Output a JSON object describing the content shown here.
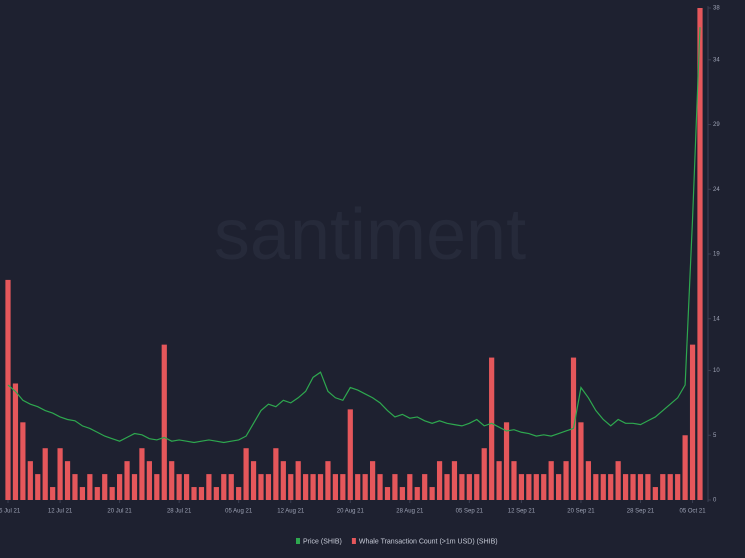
{
  "chart_data": {
    "type": "bar-line",
    "watermark": "santiment",
    "x": [
      "2021-07-05",
      "2021-07-06",
      "2021-07-07",
      "2021-07-08",
      "2021-07-09",
      "2021-07-10",
      "2021-07-11",
      "2021-07-12",
      "2021-07-13",
      "2021-07-14",
      "2021-07-15",
      "2021-07-16",
      "2021-07-17",
      "2021-07-18",
      "2021-07-19",
      "2021-07-20",
      "2021-07-21",
      "2021-07-22",
      "2021-07-23",
      "2021-07-24",
      "2021-07-25",
      "2021-07-26",
      "2021-07-27",
      "2021-07-28",
      "2021-07-29",
      "2021-07-30",
      "2021-07-31",
      "2021-08-01",
      "2021-08-02",
      "2021-08-03",
      "2021-08-04",
      "2021-08-05",
      "2021-08-06",
      "2021-08-07",
      "2021-08-08",
      "2021-08-09",
      "2021-08-10",
      "2021-08-11",
      "2021-08-12",
      "2021-08-13",
      "2021-08-14",
      "2021-08-15",
      "2021-08-16",
      "2021-08-17",
      "2021-08-18",
      "2021-08-19",
      "2021-08-20",
      "2021-08-21",
      "2021-08-22",
      "2021-08-23",
      "2021-08-24",
      "2021-08-25",
      "2021-08-26",
      "2021-08-27",
      "2021-08-28",
      "2021-08-29",
      "2021-08-30",
      "2021-08-31",
      "2021-09-01",
      "2021-09-02",
      "2021-09-03",
      "2021-09-04",
      "2021-09-05",
      "2021-09-06",
      "2021-09-07",
      "2021-09-08",
      "2021-09-09",
      "2021-09-10",
      "2021-09-11",
      "2021-09-12",
      "2021-09-13",
      "2021-09-14",
      "2021-09-15",
      "2021-09-16",
      "2021-09-17",
      "2021-09-18",
      "2021-09-19",
      "2021-09-20",
      "2021-09-21",
      "2021-09-22",
      "2021-09-23",
      "2021-09-24",
      "2021-09-25",
      "2021-09-26",
      "2021-09-27",
      "2021-09-28",
      "2021-09-29",
      "2021-09-30",
      "2021-10-01",
      "2021-10-02",
      "2021-10-03",
      "2021-10-04",
      "2021-10-05",
      "2021-10-06"
    ],
    "xlim": [
      "2021-07-05",
      "2021-10-06"
    ],
    "xticks": [
      {
        "value": "2021-07-05",
        "label": "05 Jul 21"
      },
      {
        "value": "2021-07-12",
        "label": "12 Jul 21"
      },
      {
        "value": "2021-07-20",
        "label": "20 Jul 21"
      },
      {
        "value": "2021-07-28",
        "label": "28 Jul 21"
      },
      {
        "value": "2021-08-05",
        "label": "05 Aug 21"
      },
      {
        "value": "2021-08-12",
        "label": "12 Aug 21"
      },
      {
        "value": "2021-08-20",
        "label": "20 Aug 21"
      },
      {
        "value": "2021-08-28",
        "label": "28 Aug 21"
      },
      {
        "value": "2021-09-05",
        "label": "05 Sep 21"
      },
      {
        "value": "2021-09-12",
        "label": "12 Sep 21"
      },
      {
        "value": "2021-09-20",
        "label": "20 Sep 21"
      },
      {
        "value": "2021-09-28",
        "label": "28 Sep 21"
      },
      {
        "value": "2021-10-05",
        "label": "05 Oct 21"
      }
    ],
    "ylim": [
      0,
      38
    ],
    "yticks": [
      0,
      5,
      10,
      14,
      19,
      24,
      29,
      34,
      38
    ],
    "y2lim": [
      0,
      3.85e-05
    ],
    "series": [
      {
        "name": "Whale Transaction Count (>1m USD) (SHIB)",
        "color": "#e5575b",
        "kind": "bar",
        "values": [
          17,
          9,
          6,
          3,
          2,
          4,
          1,
          4,
          3,
          2,
          1,
          2,
          1,
          2,
          1,
          2,
          3,
          2,
          4,
          3,
          2,
          12,
          3,
          2,
          2,
          1,
          1,
          2,
          1,
          2,
          2,
          1,
          4,
          3,
          2,
          2,
          4,
          3,
          2,
          3,
          2,
          2,
          2,
          3,
          2,
          2,
          7,
          2,
          2,
          3,
          2,
          1,
          2,
          1,
          2,
          1,
          2,
          1,
          3,
          2,
          3,
          2,
          2,
          2,
          4,
          11,
          3,
          6,
          3,
          2,
          2,
          2,
          2,
          3,
          2,
          3,
          11,
          6,
          3,
          2,
          2,
          2,
          3,
          2,
          2,
          2,
          2,
          1,
          2,
          2,
          2,
          5,
          12,
          38
        ]
      },
      {
        "name": "Price (SHIB)",
        "color": "#2ea84f",
        "kind": "line",
        "axis": "y2",
        "values": [
          9e-06,
          8.5e-06,
          7.8e-06,
          7.5e-06,
          7.3e-06,
          7e-06,
          6.8e-06,
          6.5e-06,
          6.3e-06,
          6.2e-06,
          5.8e-06,
          5.6e-06,
          5.3e-06,
          5e-06,
          4.8e-06,
          4.6e-06,
          4.9e-06,
          5.2e-06,
          5.1e-06,
          4.8e-06,
          4.7e-06,
          4.9e-06,
          4.6e-06,
          4.7e-06,
          4.6e-06,
          4.5e-06,
          4.6e-06,
          4.7e-06,
          4.6e-06,
          4.5e-06,
          4.6e-06,
          4.7e-06,
          5e-06,
          6e-06,
          7e-06,
          7.5e-06,
          7.3e-06,
          7.8e-06,
          7.6e-06,
          8e-06,
          8.5e-06,
          9.6e-06,
          1e-05,
          8.5e-06,
          8e-06,
          7.8e-06,
          8.8e-06,
          8.6e-06,
          8.3e-06,
          8e-06,
          7.6e-06,
          7e-06,
          6.5e-06,
          6.7e-06,
          6.4e-06,
          6.5e-06,
          6.2e-06,
          6e-06,
          6.2e-06,
          6e-06,
          5.9e-06,
          5.8e-06,
          6e-06,
          6.3e-06,
          5.8e-06,
          6e-06,
          5.7e-06,
          5.4e-06,
          5.5e-06,
          5.3e-06,
          5.2e-06,
          5e-06,
          5.1e-06,
          5e-06,
          5.2e-06,
          5.4e-06,
          5.6e-06,
          8.8e-06,
          8e-06,
          7e-06,
          6.3e-06,
          5.8e-06,
          6.3e-06,
          6e-06,
          6e-06,
          5.9e-06,
          6.2e-06,
          6.5e-06,
          7e-06,
          7.5e-06,
          8e-06,
          9e-06,
          2.2e-05,
          3.7e-05
        ]
      }
    ]
  }
}
